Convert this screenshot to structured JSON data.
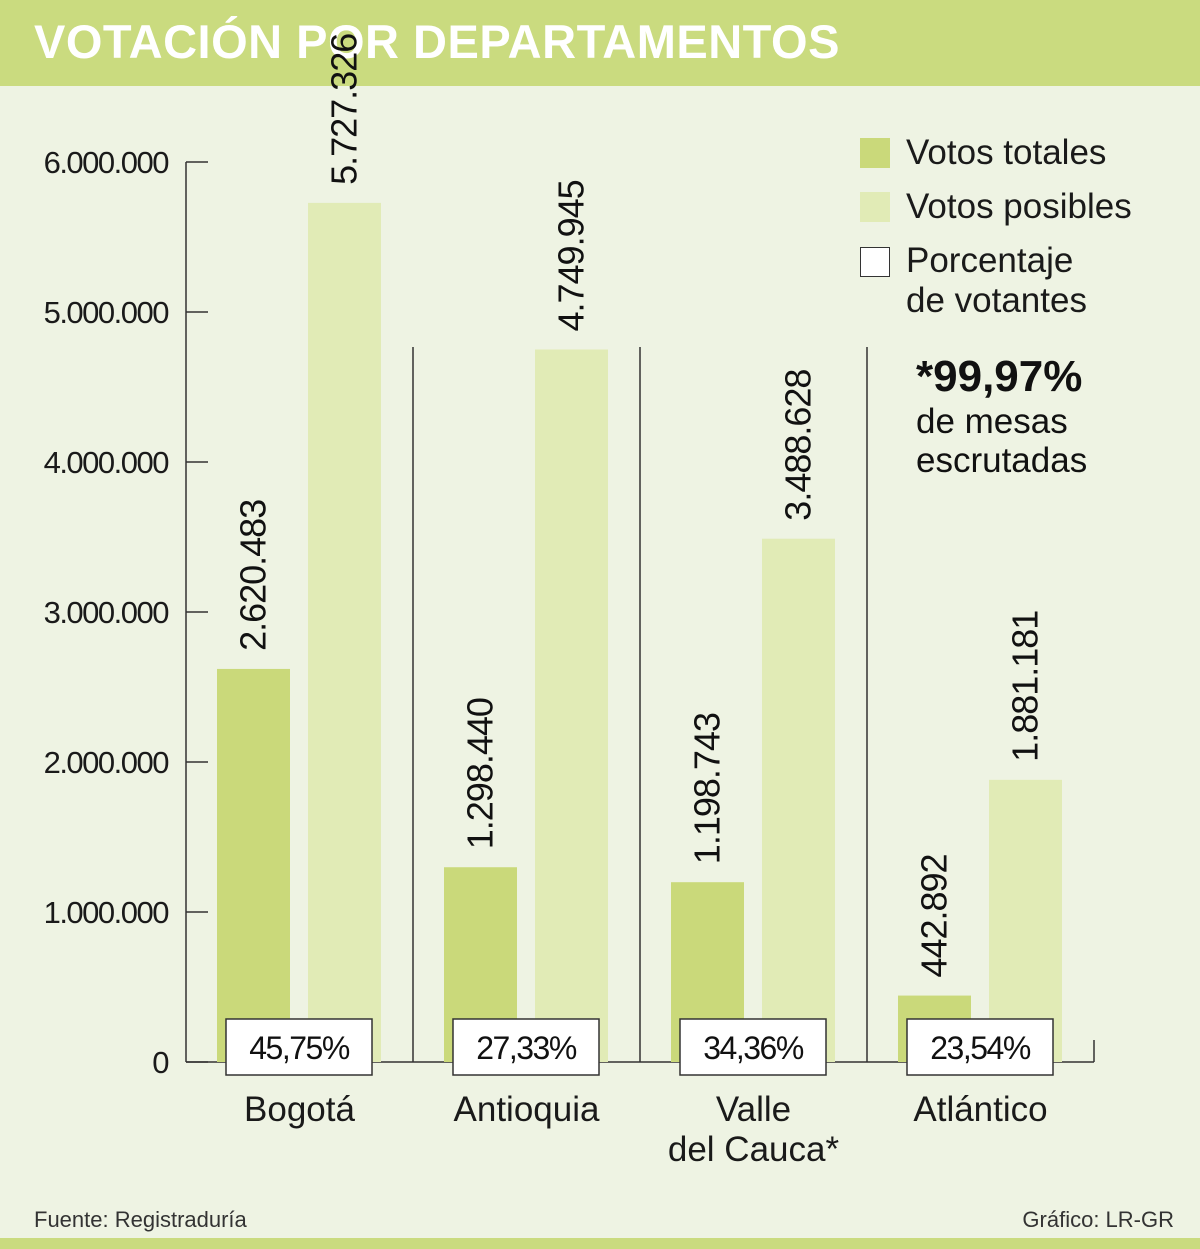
{
  "title": "VOTACIÓN POR DEPARTAMENTOS",
  "colors": {
    "header_bg": "#cadb7f",
    "background": "#eef3e3",
    "votos_totales": "#cad97a",
    "votos_posibles": "#e1ebb6",
    "axis": "#333333"
  },
  "legend": {
    "totales": "Votos totales",
    "posibles": "Votos posibles",
    "porcentaje_line1": "Porcentaje",
    "porcentaje_line2": "de votantes"
  },
  "note": {
    "percent": "*99,97%",
    "line1": "de mesas",
    "line2": "escrutadas"
  },
  "footer": {
    "source": "Fuente: Registraduría",
    "credit": "Gráfico: LR-GR"
  },
  "chart_data": {
    "type": "bar",
    "title": "VOTACIÓN POR DEPARTAMENTOS",
    "xlabel": "",
    "ylabel": "",
    "ylim": [
      0,
      6000000
    ],
    "y_ticks": [
      "0",
      "1.000.000",
      "2.000.000",
      "3.000.000",
      "4.000.000",
      "5.000.000",
      "6.000.000"
    ],
    "categories": [
      [
        "Bogotá"
      ],
      [
        "Antioquia"
      ],
      [
        "Valle",
        "del Cauca*"
      ],
      [
        "Atlántico"
      ]
    ],
    "series": [
      {
        "name": "Votos totales",
        "values": [
          2620483,
          1298440,
          1198743,
          442892
        ],
        "labels": [
          "2.620.483",
          "1.298.440",
          "1.198.743",
          "442.892"
        ]
      },
      {
        "name": "Votos posibles",
        "values": [
          5727326,
          4749945,
          3488628,
          1881181
        ],
        "labels": [
          "5.727.326",
          "4.749.945",
          "3.488.628",
          "1.881.181"
        ]
      }
    ],
    "percentages": [
      "45,75%",
      "27,33%",
      "34,36%",
      "23,54%"
    ]
  }
}
